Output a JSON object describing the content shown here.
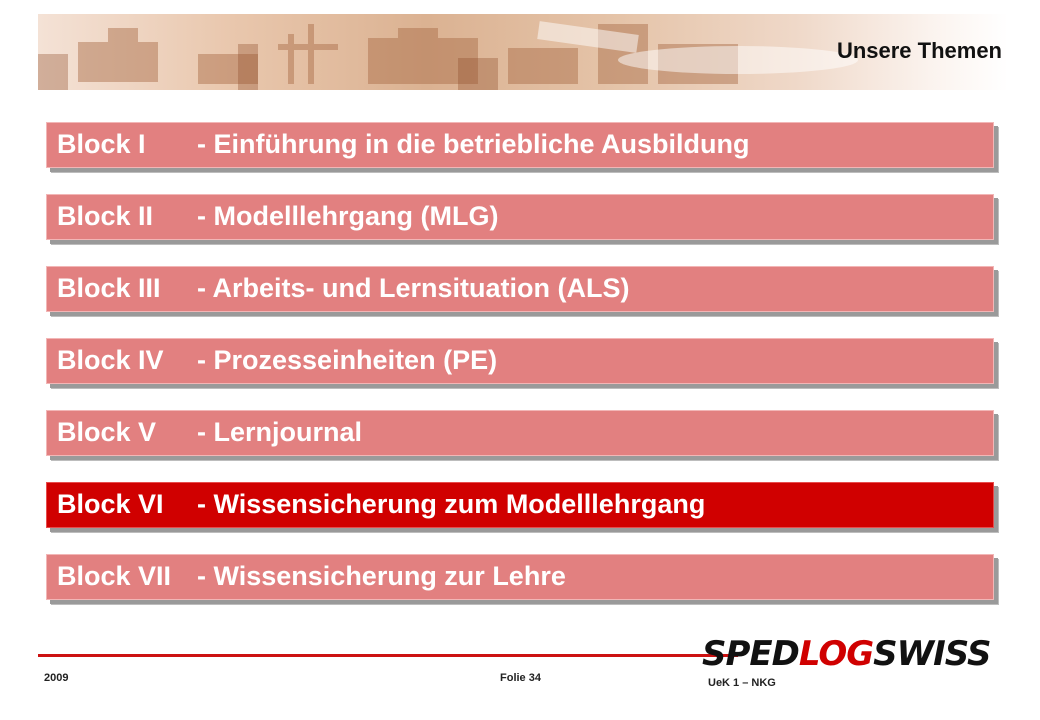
{
  "header": {
    "title": "Unsere Themen"
  },
  "blocks": [
    {
      "code": "Block I",
      "desc": "- Einführung in die betriebliche Ausbildung",
      "active": false
    },
    {
      "code": "Block II",
      "desc": "- Modelllehrgang (MLG)",
      "active": false
    },
    {
      "code": "Block III",
      "desc": "- Arbeits- und Lernsituation (ALS)",
      "active": false
    },
    {
      "code": "Block IV",
      "desc": "- Prozesseinheiten (PE)",
      "active": false
    },
    {
      "code": "Block V",
      "desc": "- Lernjournal",
      "active": false
    },
    {
      "code": "Block VI",
      "desc": "- Wissensicherung zum Modelllehrgang",
      "active": true
    },
    {
      "code": "Block VII",
      "desc": "- Wissensicherung zur Lehre",
      "active": false
    }
  ],
  "footer": {
    "year": "2009",
    "page": "Folie 34",
    "course": "UeK 1 – NKG",
    "logo_part1": "SPED",
    "logo_part2": "LOG",
    "logo_part3": "SWISS"
  },
  "colors": {
    "block_bg": "#e28080",
    "block_active_bg": "#d00000",
    "accent_red": "#cc1111"
  }
}
